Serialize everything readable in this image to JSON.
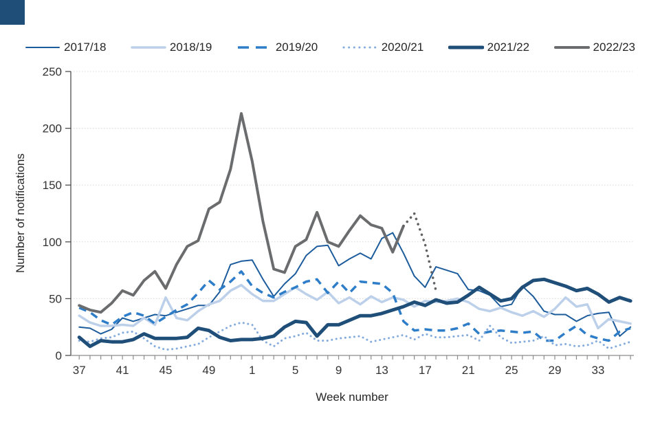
{
  "page": {
    "background": "#ffffff"
  },
  "corner_square": {
    "color": "#1f4e79"
  },
  "chart_data": {
    "type": "line",
    "title": "",
    "xlabel": "Week number",
    "ylabel": "Number of notifications",
    "ylim": [
      0,
      250
    ],
    "yticks": [
      0,
      50,
      100,
      150,
      200,
      250
    ],
    "grid": "horizontal-dotted",
    "legend_position": "top",
    "x_weeks": [
      37,
      38,
      39,
      40,
      41,
      42,
      43,
      44,
      45,
      46,
      47,
      48,
      49,
      50,
      51,
      52,
      1,
      2,
      3,
      4,
      5,
      6,
      7,
      8,
      9,
      10,
      11,
      12,
      13,
      14,
      15,
      16,
      17,
      18,
      19,
      20,
      21,
      22,
      23,
      24,
      25,
      26,
      27,
      28,
      29,
      30,
      31,
      32,
      33,
      34,
      35,
      36
    ],
    "xtick_labels": [
      "37",
      "41",
      "45",
      "49",
      "1",
      "5",
      "9",
      "13",
      "17",
      "21",
      "25",
      "29",
      "33"
    ],
    "xtick_week_step": 4,
    "axis_colors": {
      "y_axis": "#4d4d4d",
      "x_axis": "#8c8c8c",
      "gridline": "#d9d9d9"
    },
    "series": [
      {
        "name": "2017/18",
        "color": "#1c5c9c",
        "width": 2,
        "dash": "solid",
        "legend": true,
        "values": [
          25,
          24,
          19,
          23,
          33,
          30,
          33,
          36,
          35,
          38,
          41,
          44,
          44,
          56,
          80,
          83,
          84,
          67,
          52,
          63,
          72,
          88,
          96,
          97,
          79,
          85,
          90,
          85,
          103,
          108,
          90,
          70,
          60,
          78,
          75,
          72,
          58,
          57,
          53,
          43,
          45,
          61,
          52,
          39,
          36,
          36,
          30,
          35,
          37,
          38,
          17,
          25
        ]
      },
      {
        "name": "2018/19",
        "color": "#bdd0ea",
        "width": 3.5,
        "dash": "solid",
        "legend": true,
        "values": [
          35,
          29,
          26,
          26,
          27,
          26,
          33,
          27,
          51,
          33,
          31,
          39,
          45,
          48,
          57,
          62,
          54,
          48,
          48,
          54,
          60,
          54,
          49,
          56,
          46,
          51,
          45,
          52,
          47,
          51,
          49,
          43,
          48,
          47,
          48,
          50,
          47,
          41,
          39,
          42,
          38,
          35,
          39,
          34,
          41,
          51,
          43,
          45,
          24,
          32,
          30,
          28
        ]
      },
      {
        "name": "2019/20",
        "color": "#2e7dc9",
        "width": 3.5,
        "dash": "dashed",
        "legend": true,
        "values": [
          42,
          38,
          31,
          27,
          34,
          38,
          35,
          28,
          34,
          40,
          45,
          55,
          66,
          58,
          65,
          74,
          61,
          55,
          51,
          56,
          60,
          65,
          67,
          55,
          65,
          55,
          65,
          64,
          63,
          55,
          30,
          22,
          23,
          22,
          22,
          24,
          28,
          19,
          21,
          22,
          21,
          20,
          21,
          13,
          13,
          20,
          26,
          18,
          15,
          13,
          21,
          24
        ]
      },
      {
        "name": "2020/21",
        "color": "#84abde",
        "width": 3,
        "dash": "dotted",
        "legend": true,
        "values": [
          13,
          12,
          15,
          16,
          20,
          21,
          15,
          8,
          5,
          6,
          8,
          10,
          16,
          21,
          26,
          29,
          27,
          13,
          8,
          15,
          17,
          20,
          13,
          13,
          15,
          16,
          17,
          12,
          14,
          16,
          18,
          14,
          19,
          16,
          16,
          17,
          18,
          13,
          26,
          16,
          11,
          12,
          13,
          17,
          9,
          10,
          8,
          9,
          13,
          6,
          9,
          12
        ]
      },
      {
        "name": "2021/22",
        "color": "#1f4e79",
        "width": 5,
        "dash": "solid",
        "legend": true,
        "values": [
          16,
          8,
          13,
          12,
          12,
          14,
          19,
          15,
          15,
          15,
          16,
          24,
          22,
          16,
          13,
          14,
          14,
          15,
          17,
          25,
          30,
          29,
          17,
          27,
          27,
          31,
          35,
          35,
          37,
          40,
          43,
          47,
          44,
          49,
          46,
          47,
          53,
          60,
          54,
          48,
          50,
          60,
          66,
          67,
          64,
          61,
          57,
          59,
          54,
          47,
          51,
          48
        ]
      },
      {
        "name": "2022/23",
        "color": "#6b6c6e",
        "width": 4,
        "dash": "solid",
        "legend": true,
        "values": [
          44,
          40,
          38,
          46,
          57,
          53,
          66,
          74,
          59,
          80,
          96,
          101,
          129,
          135,
          164,
          213,
          171,
          118,
          76,
          73,
          96,
          102,
          126,
          100,
          96,
          110,
          123,
          115,
          112,
          91,
          114,
          null,
          null,
          null,
          null,
          null,
          null,
          null,
          null,
          null,
          null,
          null,
          null,
          null,
          null,
          null,
          null,
          null,
          null,
          null,
          null,
          null
        ]
      },
      {
        "name": "2022/23 provisional",
        "color": "#616263",
        "width": 3.6,
        "dash": "dotted-tail",
        "legend": false,
        "values": [
          null,
          null,
          null,
          null,
          null,
          null,
          null,
          null,
          null,
          null,
          null,
          null,
          null,
          null,
          null,
          null,
          null,
          null,
          null,
          null,
          null,
          null,
          null,
          null,
          null,
          null,
          null,
          null,
          null,
          null,
          114,
          125,
          98,
          57,
          null,
          null,
          null,
          null,
          null,
          null,
          null,
          null,
          null,
          null,
          null,
          null,
          null,
          null,
          null,
          null,
          null,
          null
        ]
      }
    ]
  }
}
